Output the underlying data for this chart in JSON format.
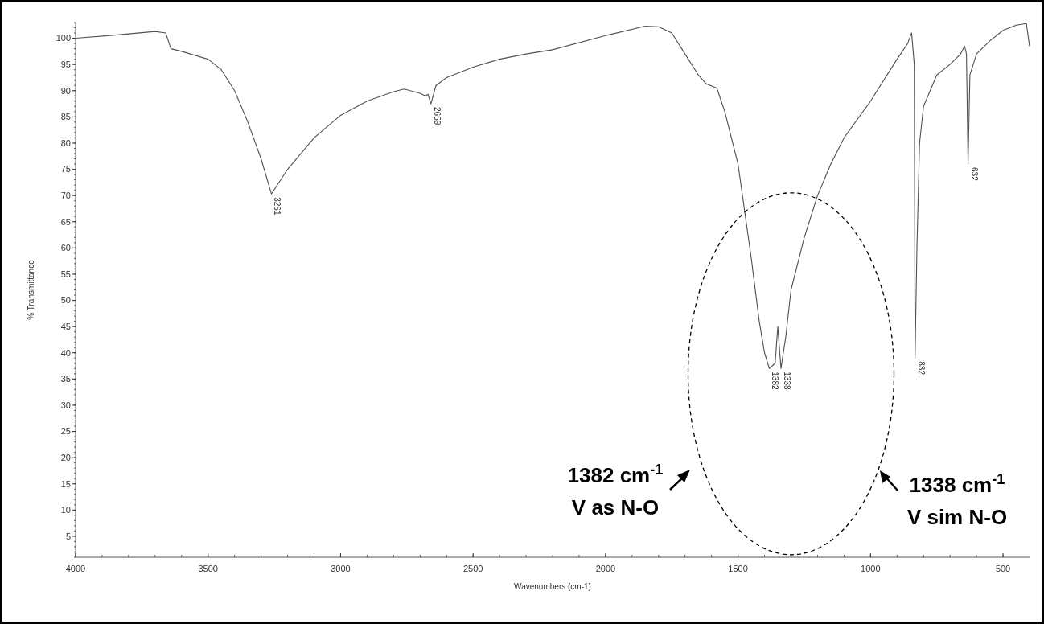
{
  "chart_data": {
    "type": "line",
    "xlabel": "Wavenumbers (cm-1)",
    "ylabel": "% Transmittance",
    "xlim": [
      4000,
      400
    ],
    "ylim": [
      1,
      103
    ],
    "xticks": [
      4000,
      3500,
      3000,
      2500,
      2000,
      1500,
      1000,
      500
    ],
    "yticks": [
      5,
      10,
      15,
      20,
      25,
      30,
      35,
      40,
      45,
      50,
      55,
      60,
      65,
      70,
      75,
      80,
      85,
      90,
      95,
      100
    ],
    "grid": false,
    "marker": "none",
    "line_style": "solid",
    "series": [
      {
        "color": "#505050",
        "x": [
          4000,
          3850,
          3700,
          3660,
          3640,
          3600,
          3500,
          3450,
          3400,
          3350,
          3300,
          3261,
          3200,
          3100,
          3000,
          2900,
          2800,
          2760,
          2700,
          2680,
          2670,
          2659,
          2640,
          2600,
          2500,
          2400,
          2300,
          2200,
          2000,
          1850,
          1800,
          1750,
          1700,
          1650,
          1620,
          1580,
          1550,
          1500,
          1450,
          1420,
          1400,
          1382,
          1360,
          1350,
          1338,
          1320,
          1300,
          1250,
          1200,
          1150,
          1100,
          1000,
          900,
          860,
          845,
          835,
          832,
          825,
          815,
          800,
          750,
          700,
          660,
          645,
          638,
          632,
          625,
          600,
          550,
          500,
          450,
          412,
          400
        ],
        "values": [
          100,
          100.6,
          101.3,
          101,
          98,
          97.5,
          96,
          94,
          90,
          84,
          77,
          70.3,
          75,
          81,
          85.3,
          88,
          89.8,
          90.3,
          89.5,
          89,
          89.3,
          87.5,
          91,
          92.5,
          94.5,
          96,
          97,
          97.8,
          100.5,
          102.3,
          102.2,
          101,
          97,
          93,
          91.3,
          90.5,
          86,
          76,
          58,
          46,
          40,
          37,
          38,
          45,
          37,
          43,
          52,
          62,
          70,
          76,
          81,
          88,
          96,
          99,
          101,
          95,
          39,
          60,
          80,
          87,
          93,
          95,
          97,
          98.5,
          97,
          76,
          93,
          97,
          99.5,
          101.5,
          102.5,
          102.8,
          98.5
        ]
      }
    ],
    "annotations": [
      {
        "text": "3261",
        "x": 3261,
        "y": 70.3
      },
      {
        "text": "2659",
        "x": 2659,
        "y": 87.5
      },
      {
        "text": "1382",
        "x": 1382,
        "y": 37
      },
      {
        "text": "1338",
        "x": 1338,
        "y": 37
      },
      {
        "text": "832",
        "x": 832,
        "y": 39
      },
      {
        "text": "632",
        "x": 632,
        "y": 76
      },
      "1382 cm$^{-1}$",
      "V as N-O",
      "1338 cm$^{-1}$",
      "V sim N-O"
    ]
  }
}
